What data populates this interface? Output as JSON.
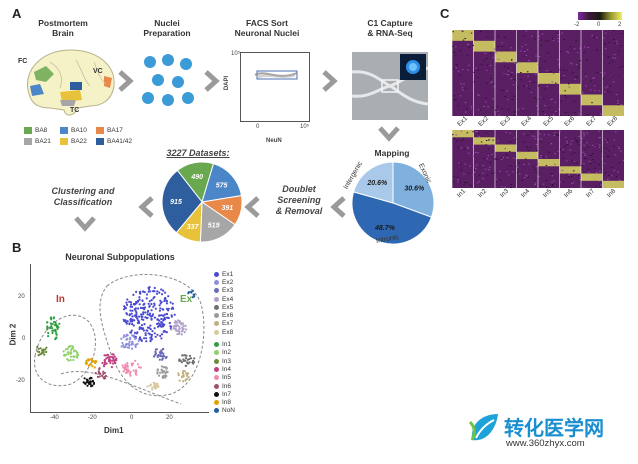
{
  "panel_a": {
    "letter": "A",
    "brain_title": "Postmortem\nBrain",
    "brain_labels": {
      "fc": "FC",
      "vc": "VC",
      "tc": "TC"
    },
    "nuclei_title": "Nuclei\nPreparation",
    "facs_title": "FACS Sort\nNeuronal Nuclei",
    "facs_axis": {
      "ylabel": "DAPI",
      "xlabel": "NeuN",
      "y_tick": "10⁵",
      "x_tick": "10⁵",
      "origin": "0"
    },
    "c1_title": "C1 Capture\n& RNA-Seq",
    "mapping_title": "Mapping",
    "datasets_title": "3227 Datasets:",
    "doublet_title": "Doublet\nScreening\n& Removal",
    "clustering_title": "Clustering and\nClassification",
    "brain_legend": [
      {
        "label": "BA8",
        "color": "#6aa84f"
      },
      {
        "label": "BA10",
        "color": "#4a86c8"
      },
      {
        "label": "BA17",
        "color": "#e8894a"
      },
      {
        "label": "BA21",
        "color": "#a6a6a6"
      },
      {
        "label": "BA22",
        "color": "#e9c23b"
      },
      {
        "label": "BA41/42",
        "color": "#2e5e9e"
      }
    ]
  },
  "datasets_pie": {
    "slices": [
      {
        "value": 490,
        "label": "490",
        "color": "#6aa84f"
      },
      {
        "value": 575,
        "label": "575",
        "color": "#4a86c8"
      },
      {
        "value": 391,
        "label": "391",
        "color": "#e8894a"
      },
      {
        "value": 519,
        "label": "519",
        "color": "#a6a6a6"
      },
      {
        "value": 337,
        "label": "337",
        "color": "#e9c23b"
      },
      {
        "value": 915,
        "label": "915",
        "color": "#2e5e9e"
      }
    ]
  },
  "mapping_pie": {
    "slices": [
      {
        "value": 30.6,
        "label": "30.6%",
        "color": "#7fb0de",
        "name": "Exonic"
      },
      {
        "value": 48.7,
        "label": "48.7%",
        "color": "#2e67b2",
        "name": "Intronic"
      },
      {
        "value": 20.6,
        "label": "20.6%",
        "color": "#a9c9ea",
        "name": "Intergenic"
      }
    ]
  },
  "panel_b": {
    "letter": "B",
    "title": "Neuronal Subpopulations",
    "region_in": "In",
    "region_ex": "Ex",
    "xlabel": "Dim1",
    "ylabel": "Dim 2",
    "x_ticks": [
      "-40",
      "-20",
      "0",
      "20"
    ],
    "y_ticks": [
      "20",
      "0",
      "-20"
    ],
    "legend": [
      {
        "label": "Ex1",
        "color": "#4a4ad0"
      },
      {
        "label": "Ex2",
        "color": "#8e8ee0"
      },
      {
        "label": "Ex3",
        "color": "#6a6ab8"
      },
      {
        "label": "Ex4",
        "color": "#b0a0c8"
      },
      {
        "label": "Ex5",
        "color": "#707070"
      },
      {
        "label": "Ex6",
        "color": "#9a9a9a"
      },
      {
        "label": "Ex7",
        "color": "#c0b080"
      },
      {
        "label": "Ex8",
        "color": "#d8c8a0"
      },
      {
        "label": "In1",
        "color": "#2e9e3e"
      },
      {
        "label": "In2",
        "color": "#8fd06a"
      },
      {
        "label": "In3",
        "color": "#6a8a3a"
      },
      {
        "label": "In4",
        "color": "#c04080"
      },
      {
        "label": "In5",
        "color": "#f08ab0"
      },
      {
        "label": "In6",
        "color": "#a05070"
      },
      {
        "label": "In7",
        "color": "#111111"
      },
      {
        "label": "In8",
        "color": "#e0a000"
      },
      {
        "label": "NoN",
        "color": "#2060a0"
      }
    ]
  },
  "panel_c": {
    "letter": "C",
    "colorbar_ticks": [
      "-2",
      "0",
      "2"
    ],
    "top_labels": [
      "Ex1",
      "Ex2",
      "Ex3",
      "Ex4",
      "Ex5",
      "Ex6",
      "Ex7",
      "Ex8"
    ],
    "bottom_labels": [
      "In1",
      "In2",
      "In3",
      "In4",
      "In5",
      "In6",
      "In7",
      "In8"
    ]
  },
  "watermark": {
    "text": "转化医学网",
    "url": "www.360zhyx.com"
  }
}
